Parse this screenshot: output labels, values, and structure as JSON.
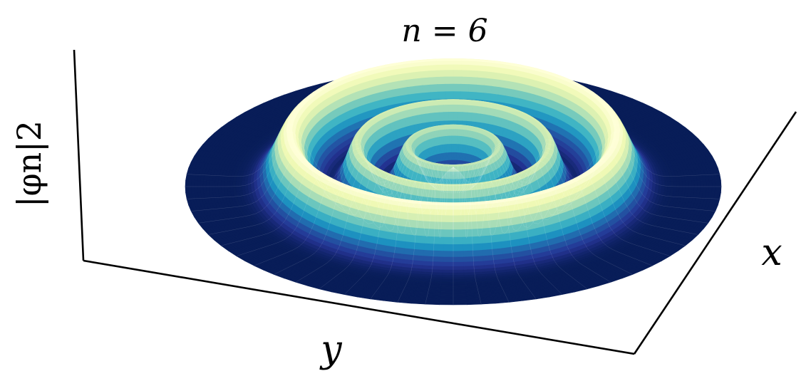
{
  "chart_data": {
    "type": "surface",
    "title": "n = 6",
    "xlabel": "x",
    "ylabel": "y",
    "zlabel": "|φn|2",
    "colormap": [
      "#081d58",
      "#253494",
      "#225ea8",
      "#1d91c0",
      "#41b6c4",
      "#7fcdbb",
      "#c7e9b4",
      "#edf8b1",
      "#ffffd9"
    ],
    "grid": false,
    "rings": [
      {
        "radius": 0.0,
        "peak": 0.35
      },
      {
        "radius": 0.17,
        "peak": 0.75
      },
      {
        "radius": 0.36,
        "peak": 0.8
      },
      {
        "radius": 0.61,
        "peak": 1.0
      }
    ]
  }
}
